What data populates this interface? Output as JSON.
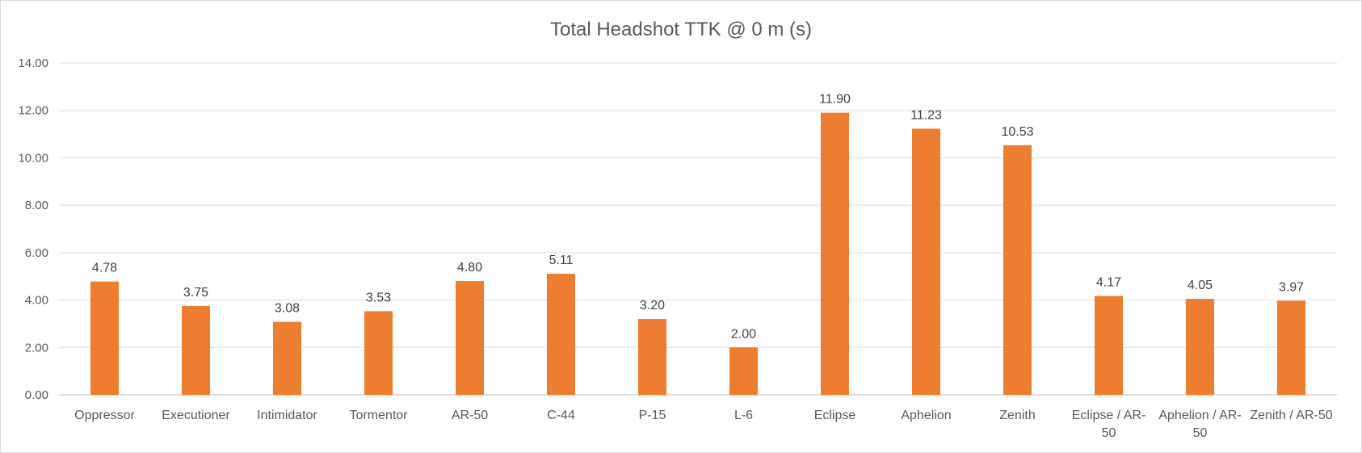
{
  "chart_data": {
    "type": "bar",
    "title": "Total Headshot TTK @ 0 m (s)",
    "xlabel": "",
    "ylabel": "",
    "ylim": [
      0,
      14
    ],
    "y_ticks": [
      "0.00",
      "2.00",
      "4.00",
      "6.00",
      "8.00",
      "10.00",
      "12.00",
      "14.00"
    ],
    "grid": true,
    "legend": "none",
    "bar_color": "#ED7D31",
    "categories": [
      [
        "Oppressor"
      ],
      [
        "Executioner"
      ],
      [
        "Intimidator"
      ],
      [
        "Tormentor"
      ],
      [
        "AR-50"
      ],
      [
        "C-44"
      ],
      [
        "P-15"
      ],
      [
        "L-6"
      ],
      [
        "Eclipse"
      ],
      [
        "Aphelion"
      ],
      [
        "Zenith"
      ],
      [
        "Eclipse / AR-",
        "50"
      ],
      [
        "Aphelion / AR-",
        "50"
      ],
      [
        "Zenith / AR-50"
      ]
    ],
    "values": [
      4.78,
      3.75,
      3.08,
      3.53,
      4.8,
      5.11,
      3.2,
      2.0,
      11.9,
      11.23,
      10.53,
      4.17,
      4.05,
      3.97
    ],
    "data_labels": [
      "4.78",
      "3.75",
      "3.08",
      "3.53",
      "4.80",
      "5.11",
      "3.20",
      "2.00",
      "11.90",
      "11.23",
      "10.53",
      "4.17",
      "4.05",
      "3.97"
    ]
  }
}
